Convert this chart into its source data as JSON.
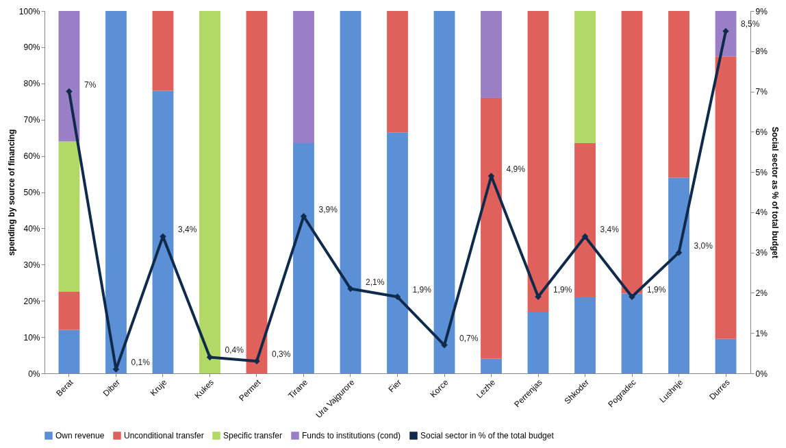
{
  "chart_data": {
    "type": "bar",
    "stacked": true,
    "ylabel": "spending by source of financing",
    "y2label": "Social sector as % of total budget",
    "categories": [
      "Berat",
      "Diber",
      "Kruje",
      "Kukes",
      "Permet",
      "Tirane",
      "Ura Vajgurore",
      "Fier",
      "Korce",
      "Lezhe",
      "Perrenjas",
      "Shkoder",
      "Pogradec",
      "Lushnje",
      "Durres"
    ],
    "series": [
      {
        "name": "Own revenue",
        "color": "#5b8fd6",
        "values": [
          12,
          100,
          78,
          0,
          0,
          63.5,
          100,
          66.5,
          100,
          4,
          17,
          21,
          22,
          54,
          9.5
        ]
      },
      {
        "name": "Unconditional transfer",
        "color": "#e0605c",
        "values": [
          10.5,
          0,
          22,
          0,
          100,
          0,
          0,
          33.5,
          0,
          72,
          83,
          42.5,
          78,
          46,
          78
        ]
      },
      {
        "name": "Specific transfer",
        "color": "#b2d865",
        "values": [
          41.5,
          0,
          0,
          100,
          0,
          0,
          0,
          0,
          0,
          0,
          0,
          36.5,
          0,
          0,
          0
        ]
      },
      {
        "name": "Funds to institutions (cond)",
        "color": "#9b7fc6",
        "values": [
          36,
          0,
          0,
          0,
          0,
          36.5,
          0,
          0,
          0,
          24,
          0,
          0,
          0,
          0,
          12.5
        ]
      },
      {
        "name": "Social sector in % of the total budget",
        "type": "line",
        "axis": "y2",
        "color": "#0f2a4a",
        "marker": "diamond",
        "line_style": "solid",
        "values": [
          7,
          0.1,
          3.4,
          0.4,
          0.3,
          3.9,
          2.1,
          1.9,
          0.7,
          4.9,
          1.9,
          3.4,
          1.9,
          3.0,
          8.5
        ],
        "value_labels": [
          "7%",
          "0,1%",
          "3,4%",
          "0,4%",
          "0,3%",
          "3,9%",
          "2,1%",
          "1,9%",
          "0,7%",
          "4,9%",
          "1,9%",
          "3,4%",
          "1,9%",
          "3,0%",
          "8,5%"
        ]
      }
    ],
    "ylim": [
      0,
      100
    ],
    "yticks": [
      {
        "value": 0,
        "label": "0%"
      },
      {
        "value": 10,
        "label": "10%"
      },
      {
        "value": 20,
        "label": "20%"
      },
      {
        "value": 30,
        "label": "30%"
      },
      {
        "value": 40,
        "label": "40%"
      },
      {
        "value": 50,
        "label": "50%"
      },
      {
        "value": 60,
        "label": "60%"
      },
      {
        "value": 70,
        "label": "70%"
      },
      {
        "value": 80,
        "label": "80%"
      },
      {
        "value": 90,
        "label": "90%"
      },
      {
        "value": 100,
        "label": "100%"
      }
    ],
    "y2lim": [
      0,
      9
    ],
    "y2ticks": [
      {
        "value": 0,
        "label": "0%"
      },
      {
        "value": 1,
        "label": "1%"
      },
      {
        "value": 2,
        "label": "2%"
      },
      {
        "value": 3,
        "label": "3%"
      },
      {
        "value": 4,
        "label": "4%"
      },
      {
        "value": 5,
        "label": "5%"
      },
      {
        "value": 6,
        "label": "6%"
      },
      {
        "value": 7,
        "label": "7%"
      },
      {
        "value": 8,
        "label": "8%"
      },
      {
        "value": 9,
        "label": "9%"
      }
    ],
    "grid": false,
    "legend": "bottom"
  }
}
